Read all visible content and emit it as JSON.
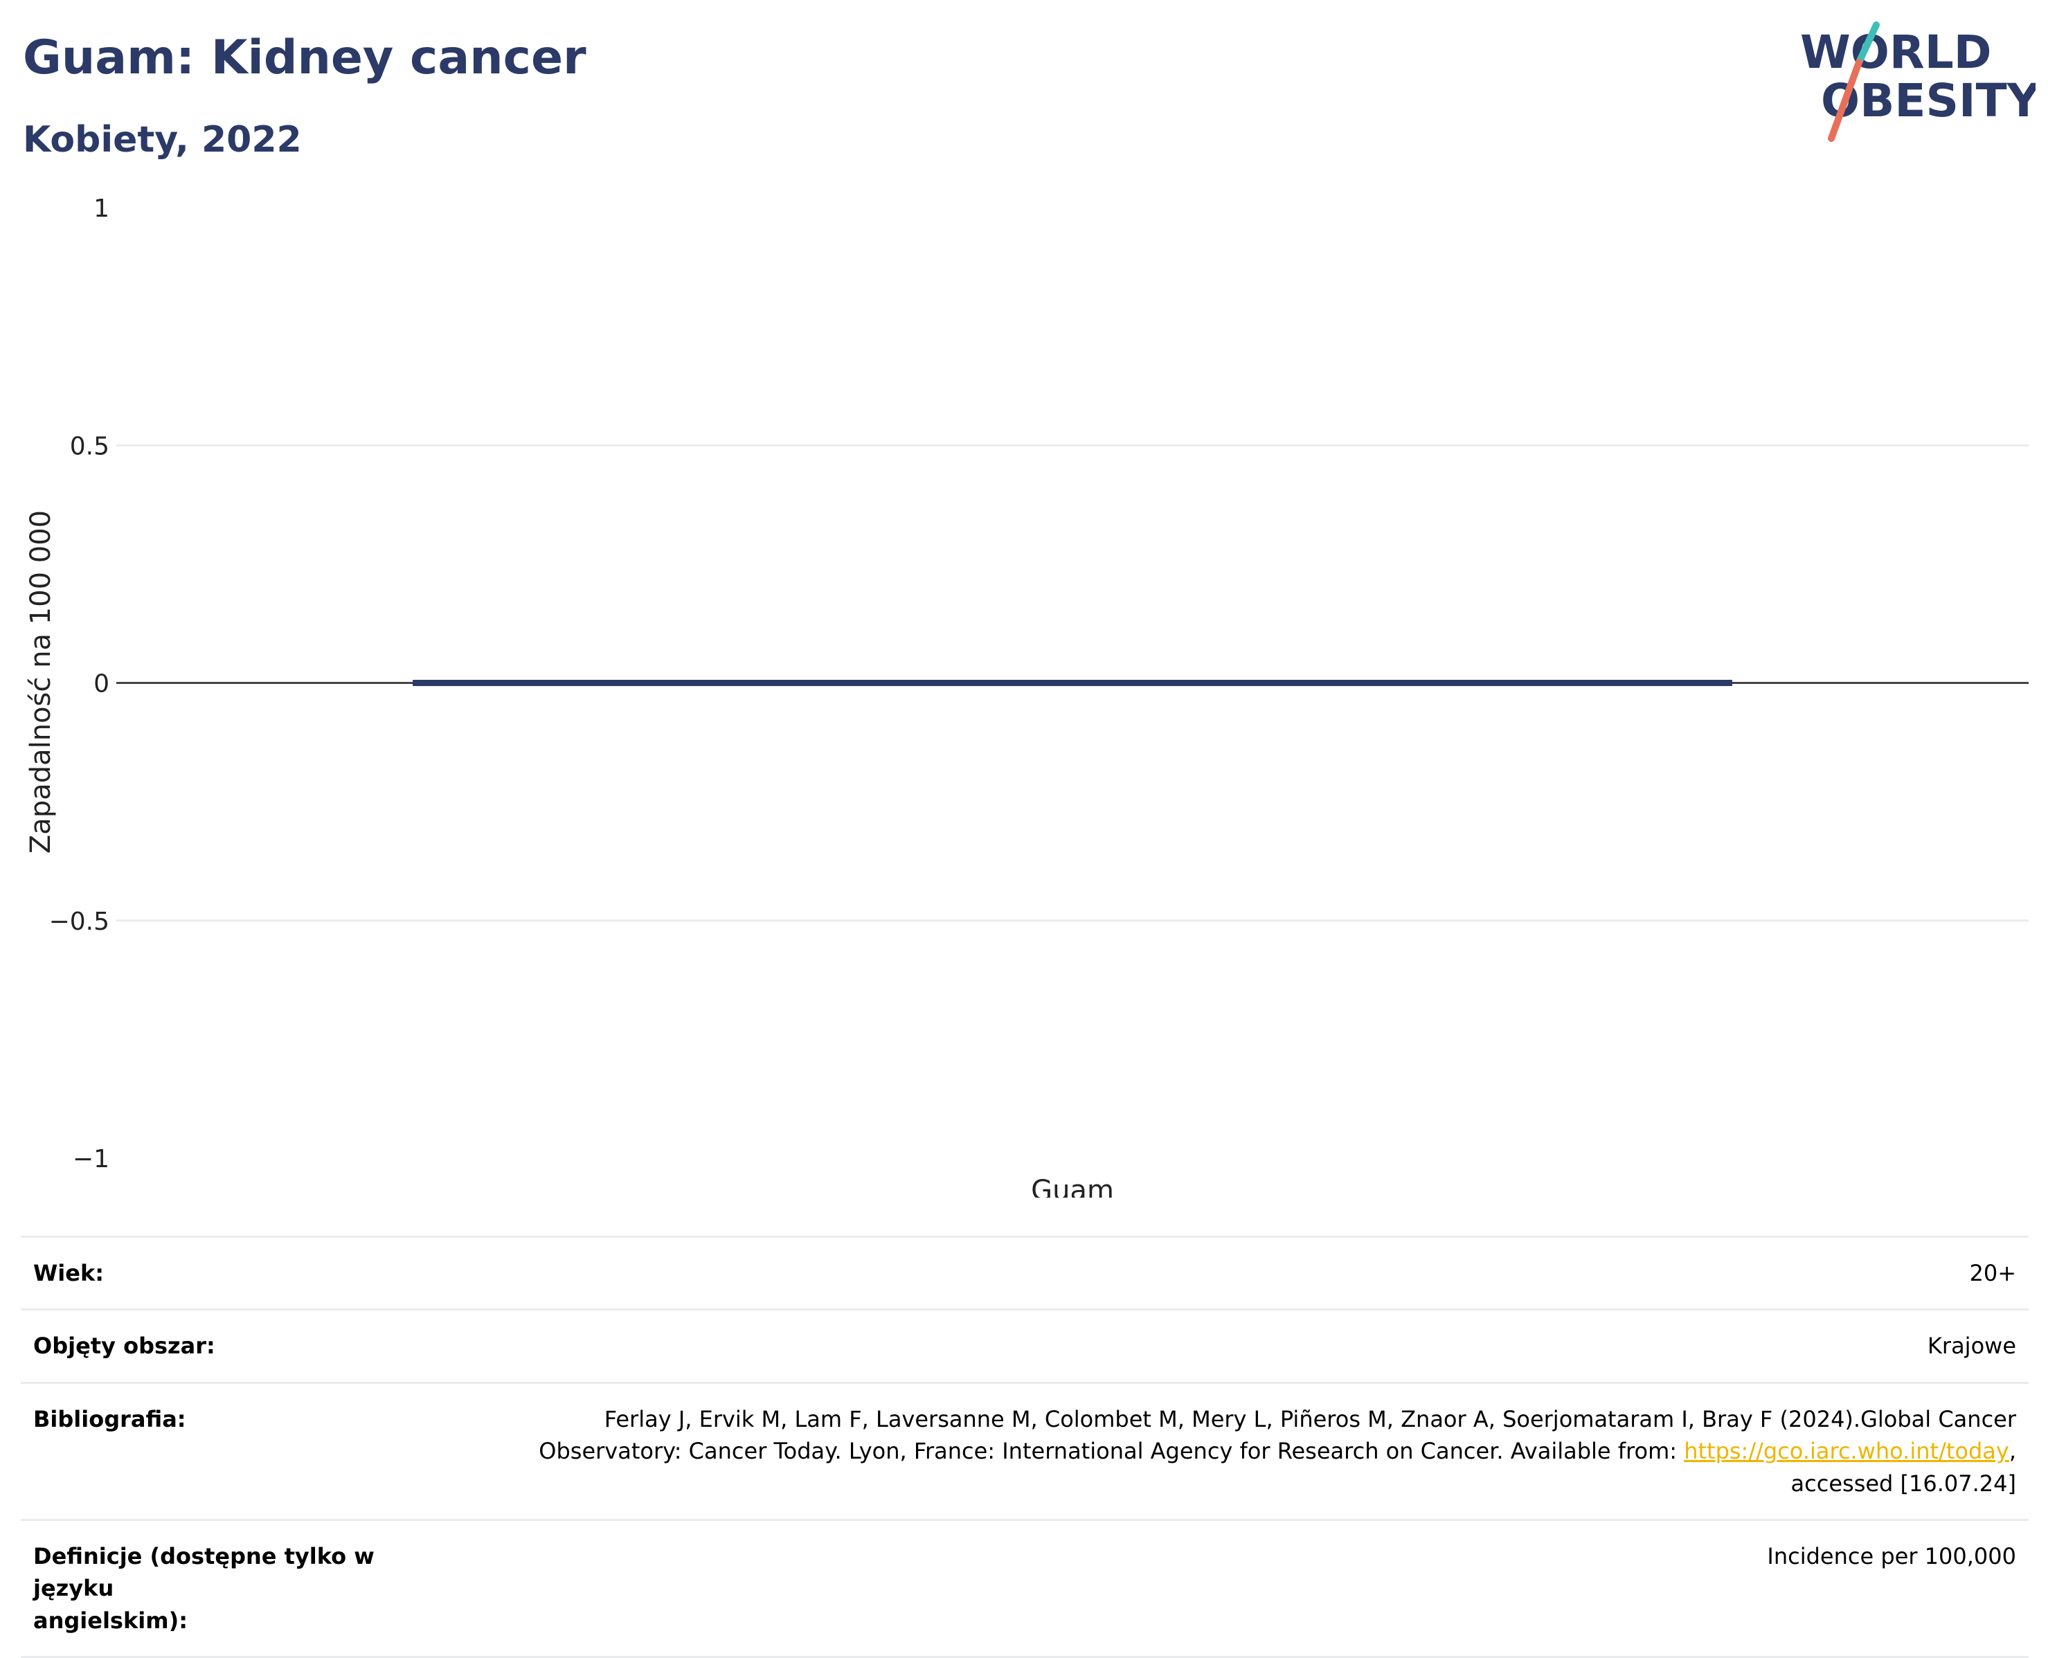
{
  "header": {
    "title": "Guam: Kidney cancer",
    "subtitle": "Kobiety, 2022"
  },
  "logo": {
    "line1": "WORLD",
    "line2": "OBESITY",
    "colors": {
      "text": "#2b3a67",
      "slash_top": "#3dbfb8",
      "slash_bottom": "#e8705a"
    }
  },
  "colors": {
    "bar": "#2b3a67",
    "gridline": "#e9ecef",
    "zeroline": "#444444",
    "link": "#f0b400"
  },
  "chart_data": {
    "type": "bar",
    "title": "Guam: Kidney cancer",
    "subtitle": "Kobiety, 2022",
    "categories": [
      "Guam"
    ],
    "values": [
      0
    ],
    "ylabel": "Zapadalność na 100 000",
    "xlabel": "",
    "ylim": [
      -1,
      1
    ],
    "yticks": [
      1,
      0.5,
      0,
      -0.5,
      -1
    ],
    "ytick_labels": [
      "1",
      "0.5",
      "0",
      "−0.5",
      "−1"
    ],
    "grid": true,
    "legend": "none"
  },
  "meta": {
    "rows": [
      {
        "label": "Wiek:",
        "value": "20+"
      },
      {
        "label": "Objęty obszar:",
        "value": "Krajowe"
      },
      {
        "label": "Bibliografia:",
        "value_line1": "Ferlay J, Ervik M, Lam F, Laversanne M, Colombet M, Mery L, Piñeros M, Znaor A, Soerjomataram I, Bray F (2024).Global Cancer",
        "value_line2": "Observatory: Cancer Today. Lyon, France: International Agency for Research on Cancer. Available from: ",
        "link": "https://gco.iarc.who.int/today",
        "value_line2_end": ",",
        "value_line3": "accessed [16.07.24]"
      },
      {
        "label_line1": "Definicje (dostępne tylko w języku",
        "label_line2": "angielskim):",
        "value": "Incidence per 100,000"
      }
    ]
  }
}
